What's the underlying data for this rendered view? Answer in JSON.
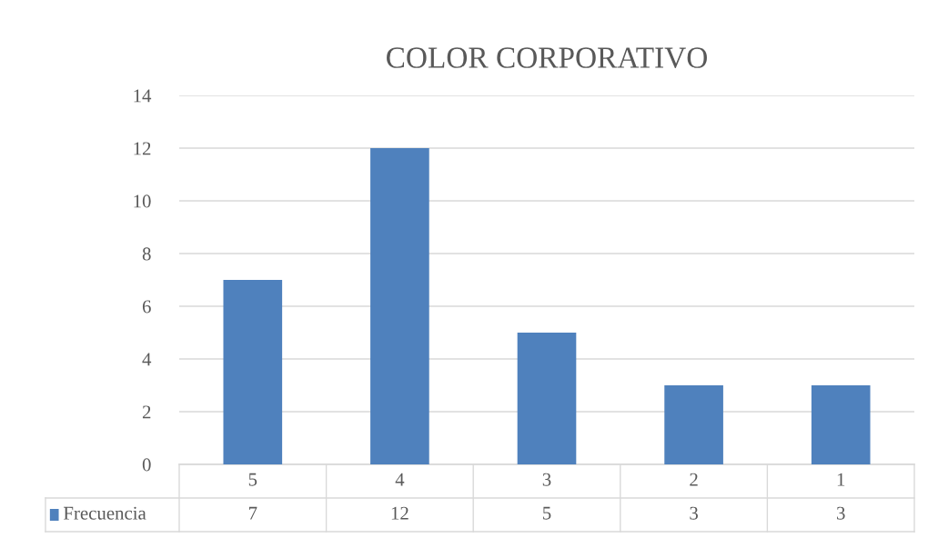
{
  "chart_data": {
    "type": "bar",
    "title": "COLOR CORPORATIVO",
    "categories": [
      "5",
      "4",
      "3",
      "2",
      "1"
    ],
    "series": [
      {
        "name": "Frecuencia",
        "color": "#4f81bd",
        "values": [
          7,
          12,
          5,
          3,
          3
        ]
      }
    ],
    "ylim": [
      0,
      14
    ],
    "yticks": [
      0,
      2,
      4,
      6,
      8,
      10,
      12,
      14
    ],
    "grid": "y",
    "legend": "bottom",
    "data_labels": true
  }
}
